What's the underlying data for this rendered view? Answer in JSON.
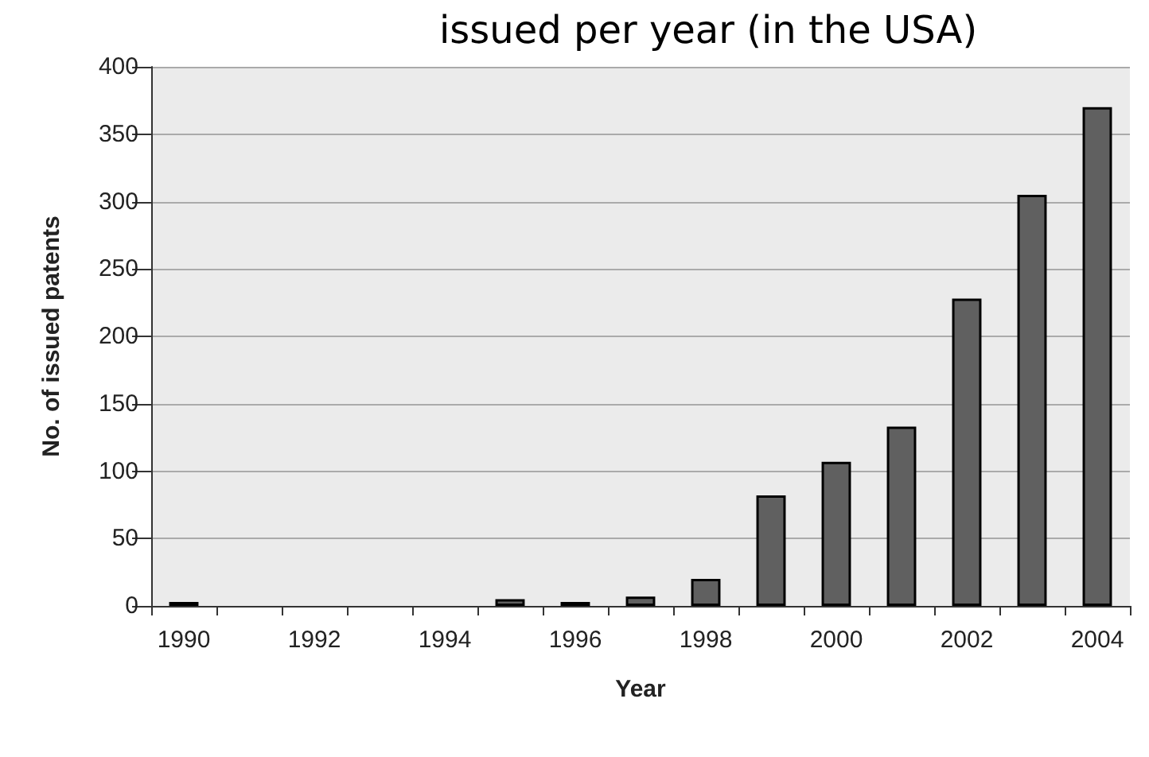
{
  "chart_data": {
    "type": "bar",
    "title": "issued per year (in the USA)",
    "xlabel": "Year",
    "ylabel": "No. of issued patents",
    "categories": [
      "1990",
      null,
      "1992",
      null,
      "1994",
      null,
      "1996",
      null,
      "1998",
      null,
      "2000",
      null,
      "2002",
      null,
      "2004"
    ],
    "values": [
      3,
      0,
      0,
      0,
      0,
      5,
      3,
      7,
      20,
      82,
      107,
      133,
      228,
      305,
      370
    ],
    "color": "#606060",
    "ylim": [
      0,
      400
    ],
    "yticks": [
      0,
      50,
      100,
      150,
      200,
      250,
      300,
      350,
      400
    ],
    "grid": "y"
  }
}
